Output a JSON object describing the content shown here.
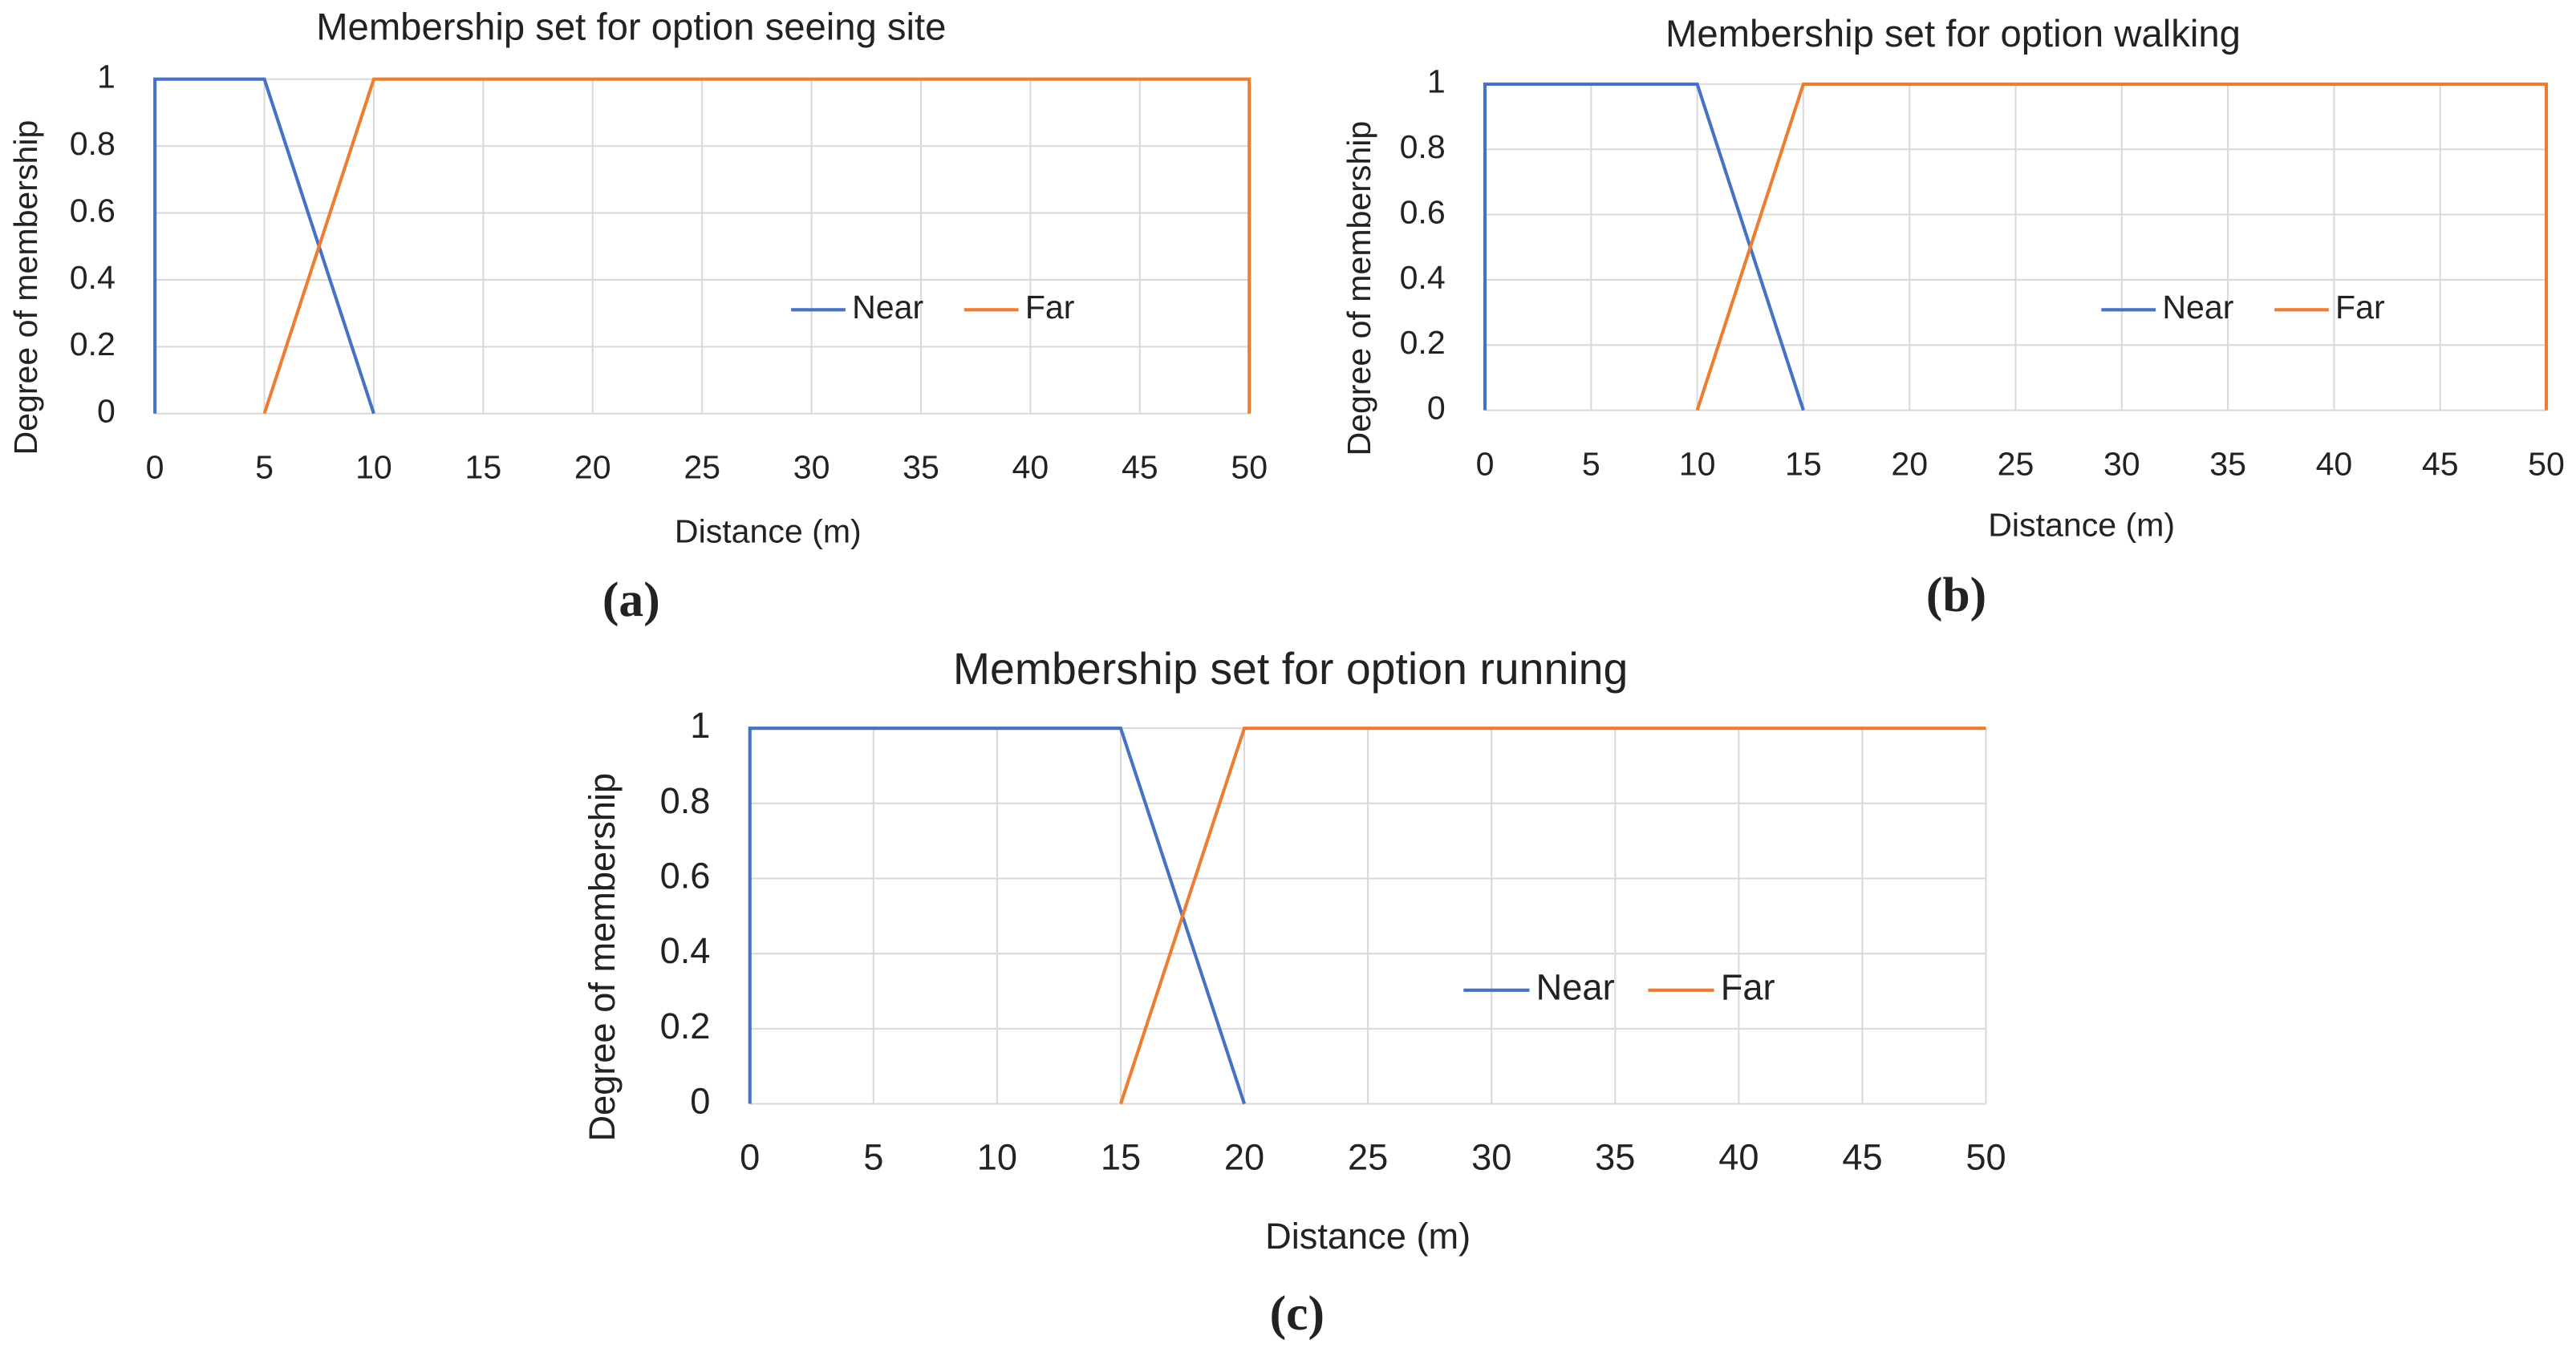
{
  "chart_data": [
    {
      "type": "line",
      "title": "Membership set for option seeing site",
      "xlabel": "Distance (m)",
      "ylabel": "Degree of membership",
      "caption": "(a)",
      "series": [
        {
          "name": "Near",
          "color": "#4472c4",
          "x": [
            0,
            0,
            5,
            10
          ],
          "values": [
            0,
            1,
            1,
            0
          ]
        },
        {
          "name": "Far",
          "color": "#ed7d31",
          "x": [
            5,
            10,
            50,
            50
          ],
          "values": [
            0,
            1,
            1,
            0
          ]
        }
      ],
      "xlim": [
        0,
        50
      ],
      "xticks": [
        0,
        5,
        10,
        15,
        20,
        25,
        30,
        35,
        40,
        45,
        50
      ],
      "ylim": [
        0,
        1
      ],
      "yticks": [
        0,
        0.2,
        0.4,
        0.6,
        0.8,
        1
      ],
      "grid": true,
      "legend": "right"
    },
    {
      "type": "line",
      "title": "Membership set for option walking",
      "xlabel": "Distance (m)",
      "ylabel": "Degree of membership",
      "caption": "(b)",
      "series": [
        {
          "name": "Near",
          "color": "#4472c4",
          "x": [
            0,
            0,
            10,
            15
          ],
          "values": [
            0,
            1,
            1,
            0
          ]
        },
        {
          "name": "Far",
          "color": "#ed7d31",
          "x": [
            10,
            15,
            50,
            50
          ],
          "values": [
            0,
            1,
            1,
            0
          ]
        }
      ],
      "xlim": [
        0,
        50
      ],
      "xticks": [
        0,
        5,
        10,
        15,
        20,
        25,
        30,
        35,
        40,
        45,
        50
      ],
      "ylim": [
        0,
        1
      ],
      "yticks": [
        0,
        0.2,
        0.4,
        0.6,
        0.8,
        1
      ],
      "grid": true,
      "legend": "right"
    },
    {
      "type": "line",
      "title": "Membership set for option running",
      "xlabel": "Distance (m)",
      "ylabel": "Degree of membership",
      "caption": "(c)",
      "series": [
        {
          "name": "Near",
          "color": "#4472c4",
          "x": [
            0,
            0,
            15,
            20
          ],
          "values": [
            0,
            1,
            1,
            0
          ]
        },
        {
          "name": "Far",
          "color": "#ed7d31",
          "x": [
            15,
            20,
            50
          ],
          "values": [
            0,
            1,
            1
          ]
        }
      ],
      "xlim": [
        0,
        50
      ],
      "xticks": [
        0,
        5,
        10,
        15,
        20,
        25,
        30,
        35,
        40,
        45,
        50
      ],
      "ylim": [
        0,
        1
      ],
      "yticks": [
        0,
        0.2,
        0.4,
        0.6,
        0.8,
        1
      ],
      "grid": true,
      "legend": "right"
    }
  ]
}
